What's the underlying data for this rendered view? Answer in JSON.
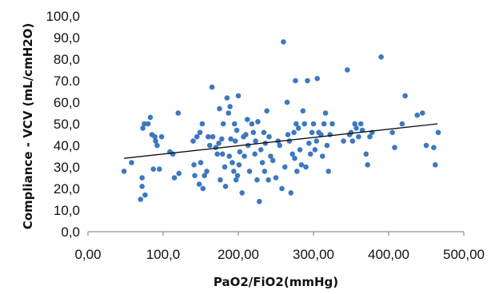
{
  "chart_data": {
    "type": "scatter",
    "title": "",
    "xlabel": "PaO2/FiO2(mmHg)",
    "ylabel": "Compliance - VCV (mL/cmH2O)",
    "xlim": [
      0,
      500
    ],
    "ylim": [
      0,
      100
    ],
    "grid": false,
    "legend": "none",
    "x_ticks": [
      0,
      100,
      200,
      300,
      400,
      500
    ],
    "x_tick_labels": [
      "0,00",
      "100,0",
      "200,00",
      "300,00",
      "400,00",
      "500,00"
    ],
    "y_ticks": [
      0,
      10,
      20,
      30,
      40,
      50,
      60,
      70,
      80,
      90,
      100
    ],
    "y_tick_labels": [
      "0,0",
      "10,0",
      "20,0",
      "30,0",
      "40,0",
      "50,0",
      "60,0",
      "70.0",
      "80,0",
      "90,0",
      "100,0"
    ],
    "colors": {
      "points": "#3d78bf",
      "trendline": "#111111",
      "axis": "#777777"
    },
    "trendline": {
      "x": [
        48,
        465
      ],
      "y": [
        34,
        50
      ]
    },
    "points": [
      {
        "x": 48,
        "y": 28
      },
      {
        "x": 58,
        "y": 32
      },
      {
        "x": 70,
        "y": 15
      },
      {
        "x": 72,
        "y": 21
      },
      {
        "x": 72,
        "y": 25
      },
      {
        "x": 73,
        "y": 48
      },
      {
        "x": 76,
        "y": 17
      },
      {
        "x": 75,
        "y": 50
      },
      {
        "x": 80,
        "y": 50
      },
      {
        "x": 83,
        "y": 53
      },
      {
        "x": 85,
        "y": 45
      },
      {
        "x": 87,
        "y": 29
      },
      {
        "x": 89,
        "y": 44
      },
      {
        "x": 90,
        "y": 42
      },
      {
        "x": 92,
        "y": 40
      },
      {
        "x": 95,
        "y": 29
      },
      {
        "x": 98,
        "y": 44
      },
      {
        "x": 109,
        "y": 37
      },
      {
        "x": 113,
        "y": 36
      },
      {
        "x": 115,
        "y": 25
      },
      {
        "x": 120,
        "y": 55
      },
      {
        "x": 121,
        "y": 27
      },
      {
        "x": 140,
        "y": 42
      },
      {
        "x": 141,
        "y": 31
      },
      {
        "x": 142,
        "y": 26
      },
      {
        "x": 145,
        "y": 44
      },
      {
        "x": 148,
        "y": 22
      },
      {
        "x": 149,
        "y": 46
      },
      {
        "x": 150,
        "y": 32
      },
      {
        "x": 152,
        "y": 50
      },
      {
        "x": 153,
        "y": 20
      },
      {
        "x": 155,
        "y": 26
      },
      {
        "x": 158,
        "y": 28
      },
      {
        "x": 160,
        "y": 44
      },
      {
        "x": 162,
        "y": 40
      },
      {
        "x": 165,
        "y": 67
      },
      {
        "x": 166,
        "y": 44
      },
      {
        "x": 170,
        "y": 39
      },
      {
        "x": 172,
        "y": 36
      },
      {
        "x": 174,
        "y": 41
      },
      {
        "x": 175,
        "y": 57
      },
      {
        "x": 176,
        "y": 24
      },
      {
        "x": 178,
        "y": 43
      },
      {
        "x": 179,
        "y": 36
      },
      {
        "x": 180,
        "y": 50
      },
      {
        "x": 182,
        "y": 30
      },
      {
        "x": 183,
        "y": 21
      },
      {
        "x": 185,
        "y": 62
      },
      {
        "x": 187,
        "y": 55
      },
      {
        "x": 188,
        "y": 35
      },
      {
        "x": 189,
        "y": 58
      },
      {
        "x": 190,
        "y": 43
      },
      {
        "x": 192,
        "y": 32
      },
      {
        "x": 194,
        "y": 28
      },
      {
        "x": 195,
        "y": 50
      },
      {
        "x": 196,
        "y": 42
      },
      {
        "x": 197,
        "y": 24
      },
      {
        "x": 198,
        "y": 47
      },
      {
        "x": 199,
        "y": 26
      },
      {
        "x": 200,
        "y": 63
      },
      {
        "x": 201,
        "y": 31
      },
      {
        "x": 202,
        "y": 37
      },
      {
        "x": 205,
        "y": 18
      },
      {
        "x": 207,
        "y": 44
      },
      {
        "x": 208,
        "y": 35
      },
      {
        "x": 210,
        "y": 45
      },
      {
        "x": 212,
        "y": 52
      },
      {
        "x": 213,
        "y": 40
      },
      {
        "x": 215,
        "y": 28
      },
      {
        "x": 218,
        "y": 50
      },
      {
        "x": 220,
        "y": 46
      },
      {
        "x": 222,
        "y": 36
      },
      {
        "x": 223,
        "y": 42
      },
      {
        "x": 225,
        "y": 24
      },
      {
        "x": 226,
        "y": 51
      },
      {
        "x": 228,
        "y": 14
      },
      {
        "x": 230,
        "y": 38
      },
      {
        "x": 232,
        "y": 32
      },
      {
        "x": 234,
        "y": 46
      },
      {
        "x": 235,
        "y": 28
      },
      {
        "x": 236,
        "y": 41
      },
      {
        "x": 238,
        "y": 56
      },
      {
        "x": 240,
        "y": 24
      },
      {
        "x": 241,
        "y": 44
      },
      {
        "x": 243,
        "y": 35
      },
      {
        "x": 246,
        "y": 33
      },
      {
        "x": 250,
        "y": 25
      },
      {
        "x": 253,
        "y": 42
      },
      {
        "x": 255,
        "y": 40
      },
      {
        "x": 258,
        "y": 20
      },
      {
        "x": 260,
        "y": 88
      },
      {
        "x": 262,
        "y": 30
      },
      {
        "x": 265,
        "y": 60
      },
      {
        "x": 266,
        "y": 45
      },
      {
        "x": 268,
        "y": 42
      },
      {
        "x": 270,
        "y": 18
      },
      {
        "x": 272,
        "y": 36
      },
      {
        "x": 274,
        "y": 46
      },
      {
        "x": 275,
        "y": 34
      },
      {
        "x": 276,
        "y": 70
      },
      {
        "x": 277,
        "y": 50
      },
      {
        "x": 278,
        "y": 28
      },
      {
        "x": 280,
        "y": 48
      },
      {
        "x": 282,
        "y": 38
      },
      {
        "x": 284,
        "y": 31
      },
      {
        "x": 286,
        "y": 56
      },
      {
        "x": 288,
        "y": 50
      },
      {
        "x": 290,
        "y": 30
      },
      {
        "x": 292,
        "y": 70
      },
      {
        "x": 294,
        "y": 41
      },
      {
        "x": 296,
        "y": 36
      },
      {
        "x": 298,
        "y": 46
      },
      {
        "x": 300,
        "y": 50
      },
      {
        "x": 302,
        "y": 38
      },
      {
        "x": 304,
        "y": 42
      },
      {
        "x": 305,
        "y": 71
      },
      {
        "x": 307,
        "y": 46
      },
      {
        "x": 310,
        "y": 45
      },
      {
        "x": 312,
        "y": 35
      },
      {
        "x": 314,
        "y": 50
      },
      {
        "x": 316,
        "y": 55
      },
      {
        "x": 318,
        "y": 40
      },
      {
        "x": 320,
        "y": 28
      },
      {
        "x": 322,
        "y": 45
      },
      {
        "x": 325,
        "y": 50
      },
      {
        "x": 340,
        "y": 42
      },
      {
        "x": 345,
        "y": 75
      },
      {
        "x": 348,
        "y": 45
      },
      {
        "x": 350,
        "y": 46
      },
      {
        "x": 352,
        "y": 42
      },
      {
        "x": 355,
        "y": 50
      },
      {
        "x": 357,
        "y": 48
      },
      {
        "x": 360,
        "y": 44
      },
      {
        "x": 363,
        "y": 50
      },
      {
        "x": 365,
        "y": 47
      },
      {
        "x": 370,
        "y": 36
      },
      {
        "x": 372,
        "y": 31
      },
      {
        "x": 375,
        "y": 44
      },
      {
        "x": 378,
        "y": 46
      },
      {
        "x": 390,
        "y": 81
      },
      {
        "x": 405,
        "y": 46
      },
      {
        "x": 408,
        "y": 39
      },
      {
        "x": 418,
        "y": 50
      },
      {
        "x": 422,
        "y": 63
      },
      {
        "x": 438,
        "y": 54
      },
      {
        "x": 445,
        "y": 55
      },
      {
        "x": 450,
        "y": 40
      },
      {
        "x": 460,
        "y": 39
      },
      {
        "x": 462,
        "y": 31
      },
      {
        "x": 466,
        "y": 46
      }
    ]
  }
}
